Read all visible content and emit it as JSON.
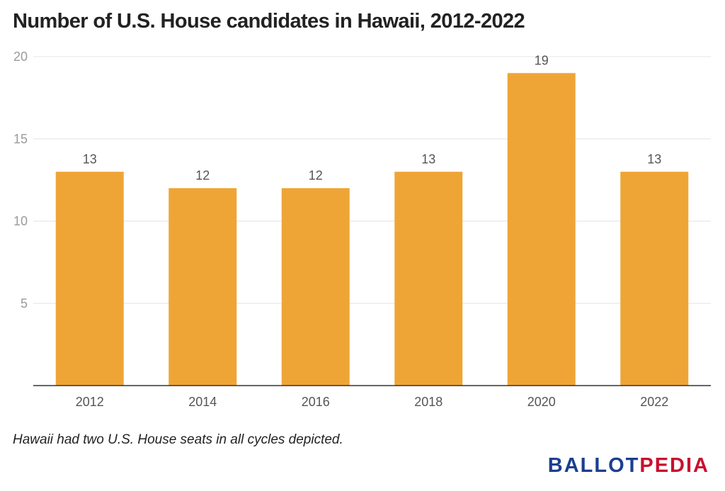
{
  "chart_data": {
    "type": "bar",
    "title": "Number of U.S. House candidates in Hawaii, 2012-2022",
    "categories": [
      "2012",
      "2014",
      "2016",
      "2018",
      "2020",
      "2022"
    ],
    "values": [
      13,
      12,
      12,
      13,
      19,
      13
    ],
    "ylim": [
      0,
      20
    ],
    "yticks": [
      "5",
      "10",
      "15",
      "20"
    ],
    "xlabel": "",
    "ylabel": "",
    "grid": true,
    "legend": "none",
    "bar_color": "#efa536"
  },
  "footnote": "Hawaii had two U.S. House seats in all cycles depicted.",
  "logo": {
    "part_a": "BALLOT",
    "part_b": "PEDIA",
    "color_a": "#1b3e8f",
    "color_b": "#c8102e"
  }
}
